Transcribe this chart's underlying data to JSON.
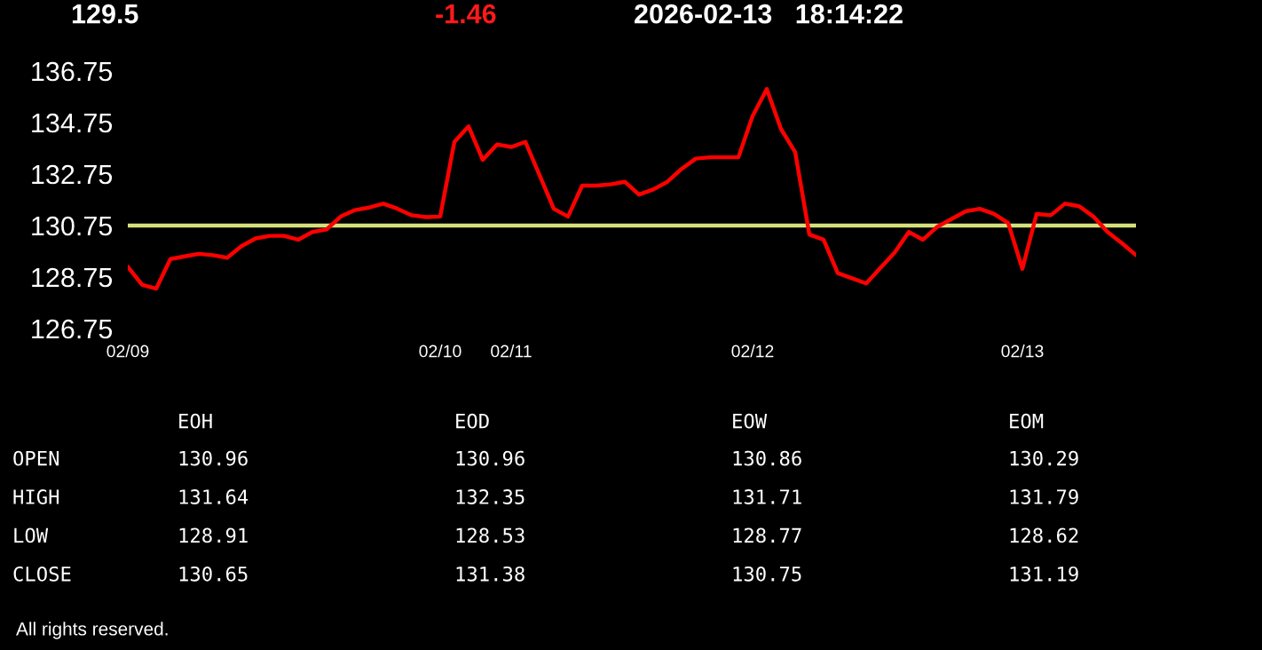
{
  "chart_data": {
    "type": "line",
    "categories": [
      "02/09",
      null,
      null,
      null,
      null,
      null,
      null,
      null,
      null,
      null,
      null,
      null,
      null,
      null,
      null,
      null,
      null,
      null,
      null,
      null,
      null,
      null,
      "02/10",
      null,
      null,
      null,
      null,
      "02/11",
      null,
      null,
      null,
      null,
      null,
      null,
      null,
      null,
      null,
      null,
      null,
      null,
      null,
      null,
      null,
      null,
      "02/12",
      null,
      null,
      null,
      null,
      null,
      null,
      null,
      null,
      null,
      null,
      null,
      null,
      null,
      null,
      null,
      null,
      null,
      null,
      "02/13",
      null,
      null,
      null,
      null,
      null,
      null,
      null,
      null
    ],
    "series": [
      {
        "color": "#ff0000",
        "values": [
          129.15,
          128.45,
          128.3,
          129.45,
          129.55,
          129.65,
          129.6,
          129.5,
          129.95,
          130.25,
          130.35,
          130.35,
          130.2,
          130.5,
          130.6,
          131.1,
          131.35,
          131.45,
          131.6,
          131.4,
          131.15,
          131.08,
          131.1,
          134.0,
          134.6,
          133.3,
          133.9,
          133.8,
          134.0,
          132.7,
          131.4,
          131.1,
          132.3,
          132.3,
          132.35,
          132.45,
          131.95,
          132.15,
          132.45,
          132.95,
          133.35,
          133.4,
          133.4,
          133.4,
          135.0,
          136.05,
          134.5,
          133.6,
          130.4,
          130.2,
          128.9,
          128.7,
          128.5,
          129.1,
          129.7,
          130.5,
          130.2,
          130.7,
          131.0,
          131.3,
          131.4,
          131.2,
          130.85,
          129.07,
          131.2,
          131.15,
          131.6,
          131.5,
          131.1,
          130.5,
          130.07,
          129.6
        ]
      }
    ],
    "ref_lines": [
      {
        "axis": "y",
        "value": 130.75,
        "color": "#d4e07a"
      }
    ],
    "ylim": [
      126.75,
      136.75
    ],
    "yticks": [
      126.75,
      128.75,
      130.75,
      132.75,
      134.75,
      136.75
    ],
    "annotations": [
      "129.5",
      "-1.46",
      "2026-02-13   18:14:22",
      "EOH",
      "EOD",
      "EOW",
      "EOM",
      "OPEN",
      "130.96",
      "130.96",
      "130.86",
      "130.29",
      "HIGH",
      "131.64",
      "132.35",
      "131.71",
      "131.79",
      "LOW",
      "128.91",
      "128.53",
      "128.77",
      "128.62",
      "CLOSE",
      "130.65",
      "131.38",
      "130.75",
      "131.19",
      "All rights reserved."
    ]
  }
}
